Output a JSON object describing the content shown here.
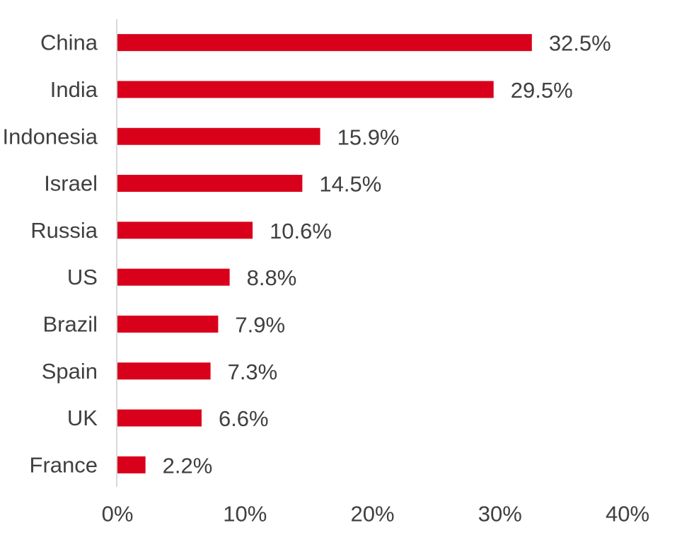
{
  "chart_data": {
    "type": "bar",
    "orientation": "horizontal",
    "categories": [
      "China",
      "India",
      "Indonesia",
      "Israel",
      "Russia",
      "US",
      "Brazil",
      "Spain",
      "UK",
      "France"
    ],
    "values": [
      32.5,
      29.5,
      15.9,
      14.5,
      10.6,
      8.8,
      7.9,
      7.3,
      6.6,
      2.2
    ],
    "value_labels": [
      "32.5%",
      "29.5%",
      "15.9%",
      "14.5%",
      "10.6%",
      "8.8%",
      "7.9%",
      "7.3%",
      "6.6%",
      "2.2%"
    ],
    "x_ticks": [
      0,
      10,
      20,
      30,
      40
    ],
    "x_tick_labels": [
      "0%",
      "10%",
      "20%",
      "30%",
      "40%"
    ],
    "xlim": [
      0,
      40
    ],
    "grid": false,
    "legend": false,
    "bar_color": "#d9001b",
    "text_color": "#404040",
    "axis_color": "#d9d9d9"
  }
}
